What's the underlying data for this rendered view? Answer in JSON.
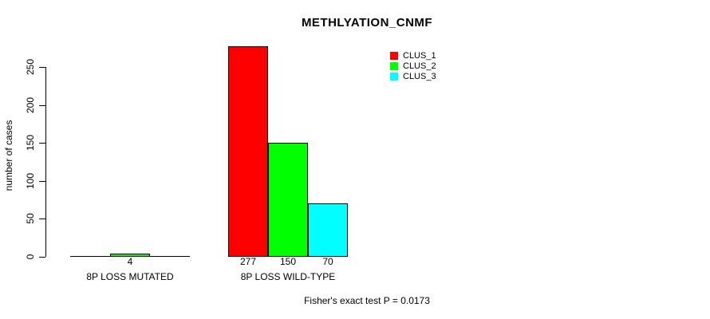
{
  "chart_data": {
    "type": "bar",
    "title": "METHLYATION_CNMF",
    "ylabel": "number of cases",
    "xlabel": "",
    "ylim": [
      0,
      250
    ],
    "yticks": [
      0,
      50,
      100,
      150,
      200,
      250
    ],
    "categories": [
      "8P LOSS MUTATED",
      "8P LOSS WILD-TYPE"
    ],
    "series": [
      {
        "name": "CLUS_1",
        "color": "#ff0000",
        "values": [
          0,
          277
        ]
      },
      {
        "name": "CLUS_2",
        "color": "#00ff00",
        "values": [
          4,
          150
        ]
      },
      {
        "name": "CLUS_3",
        "color": "#00ffff",
        "values": [
          0,
          70
        ]
      }
    ],
    "value_labels": [
      [
        "",
        "4",
        ""
      ],
      [
        "277",
        "150",
        "70"
      ]
    ],
    "annotation": "Fisher's exact test P = 0.0173",
    "legend_position": "top-right",
    "grid": false,
    "bar_outline_color": "#000000",
    "background_color": "#ffffff"
  }
}
